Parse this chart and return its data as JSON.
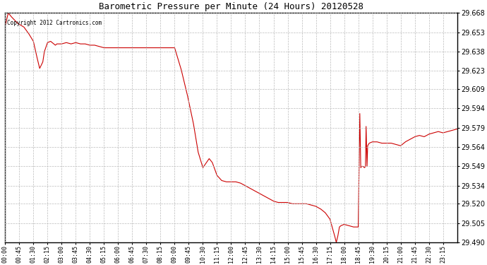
{
  "title": "Barometric Pressure per Minute (24 Hours) 20120528",
  "copyright_text": "Copyright 2012 Cartronics.com",
  "line_color": "#cc0000",
  "background_color": "#ffffff",
  "grid_color": "#bbbbbb",
  "ylim": [
    29.49,
    29.668
  ],
  "yticks": [
    29.49,
    29.505,
    29.52,
    29.534,
    29.549,
    29.564,
    29.579,
    29.594,
    29.609,
    29.623,
    29.638,
    29.653,
    29.668
  ],
  "xtick_labels": [
    "00:00",
    "00:45",
    "01:30",
    "02:15",
    "03:00",
    "03:45",
    "04:30",
    "05:15",
    "06:00",
    "06:45",
    "07:30",
    "08:15",
    "09:00",
    "09:45",
    "10:30",
    "11:15",
    "12:00",
    "12:45",
    "13:30",
    "14:15",
    "15:00",
    "15:45",
    "16:30",
    "17:15",
    "18:00",
    "18:45",
    "19:30",
    "20:15",
    "21:00",
    "21:45",
    "22:30",
    "23:15"
  ],
  "key_points": [
    [
      0,
      29.658
    ],
    [
      10,
      29.668
    ],
    [
      20,
      29.665
    ],
    [
      40,
      29.66
    ],
    [
      60,
      29.657
    ],
    [
      75,
      29.652
    ],
    [
      90,
      29.646
    ],
    [
      100,
      29.635
    ],
    [
      110,
      29.625
    ],
    [
      120,
      29.63
    ],
    [
      125,
      29.638
    ],
    [
      135,
      29.645
    ],
    [
      145,
      29.646
    ],
    [
      150,
      29.645
    ],
    [
      160,
      29.643
    ],
    [
      165,
      29.644
    ],
    [
      180,
      29.644
    ],
    [
      195,
      29.645
    ],
    [
      210,
      29.644
    ],
    [
      225,
      29.645
    ],
    [
      240,
      29.644
    ],
    [
      255,
      29.644
    ],
    [
      270,
      29.643
    ],
    [
      285,
      29.643
    ],
    [
      300,
      29.642
    ],
    [
      315,
      29.641
    ],
    [
      330,
      29.641
    ],
    [
      345,
      29.641
    ],
    [
      360,
      29.641
    ],
    [
      375,
      29.641
    ],
    [
      390,
      29.641
    ],
    [
      405,
      29.641
    ],
    [
      420,
      29.641
    ],
    [
      435,
      29.641
    ],
    [
      450,
      29.641
    ],
    [
      465,
      29.641
    ],
    [
      480,
      29.641
    ],
    [
      495,
      29.641
    ],
    [
      510,
      29.641
    ],
    [
      525,
      29.641
    ],
    [
      540,
      29.641
    ],
    [
      560,
      29.625
    ],
    [
      580,
      29.605
    ],
    [
      600,
      29.582
    ],
    [
      615,
      29.56
    ],
    [
      630,
      29.548
    ],
    [
      650,
      29.555
    ],
    [
      660,
      29.552
    ],
    [
      675,
      29.542
    ],
    [
      690,
      29.538
    ],
    [
      705,
      29.537
    ],
    [
      720,
      29.537
    ],
    [
      735,
      29.537
    ],
    [
      750,
      29.536
    ],
    [
      765,
      29.534
    ],
    [
      780,
      29.532
    ],
    [
      795,
      29.53
    ],
    [
      810,
      29.528
    ],
    [
      825,
      29.526
    ],
    [
      840,
      29.524
    ],
    [
      855,
      29.522
    ],
    [
      870,
      29.521
    ],
    [
      885,
      29.521
    ],
    [
      900,
      29.521
    ],
    [
      915,
      29.52
    ],
    [
      930,
      29.52
    ],
    [
      945,
      29.52
    ],
    [
      960,
      29.52
    ],
    [
      975,
      29.519
    ],
    [
      990,
      29.518
    ],
    [
      1005,
      29.516
    ],
    [
      1020,
      29.513
    ],
    [
      1035,
      29.508
    ],
    [
      1050,
      29.495
    ],
    [
      1055,
      29.49
    ],
    [
      1060,
      29.495
    ],
    [
      1065,
      29.502
    ],
    [
      1070,
      29.503
    ],
    [
      1080,
      29.504
    ],
    [
      1095,
      29.503
    ],
    [
      1110,
      29.502
    ],
    [
      1125,
      29.502
    ],
    [
      1130,
      29.59
    ],
    [
      1133,
      29.548
    ],
    [
      1136,
      29.549
    ],
    [
      1140,
      29.549
    ],
    [
      1145,
      29.548
    ],
    [
      1148,
      29.549
    ],
    [
      1150,
      29.58
    ],
    [
      1153,
      29.549
    ],
    [
      1155,
      29.565
    ],
    [
      1160,
      29.567
    ],
    [
      1170,
      29.568
    ],
    [
      1185,
      29.568
    ],
    [
      1200,
      29.567
    ],
    [
      1215,
      29.567
    ],
    [
      1230,
      29.567
    ],
    [
      1245,
      29.566
    ],
    [
      1260,
      29.565
    ],
    [
      1275,
      29.568
    ],
    [
      1290,
      29.57
    ],
    [
      1305,
      29.572
    ],
    [
      1320,
      29.573
    ],
    [
      1335,
      29.572
    ],
    [
      1350,
      29.574
    ],
    [
      1365,
      29.575
    ],
    [
      1380,
      29.576
    ],
    [
      1395,
      29.575
    ],
    [
      1410,
      29.576
    ],
    [
      1425,
      29.577
    ],
    [
      1440,
      29.578
    ]
  ]
}
